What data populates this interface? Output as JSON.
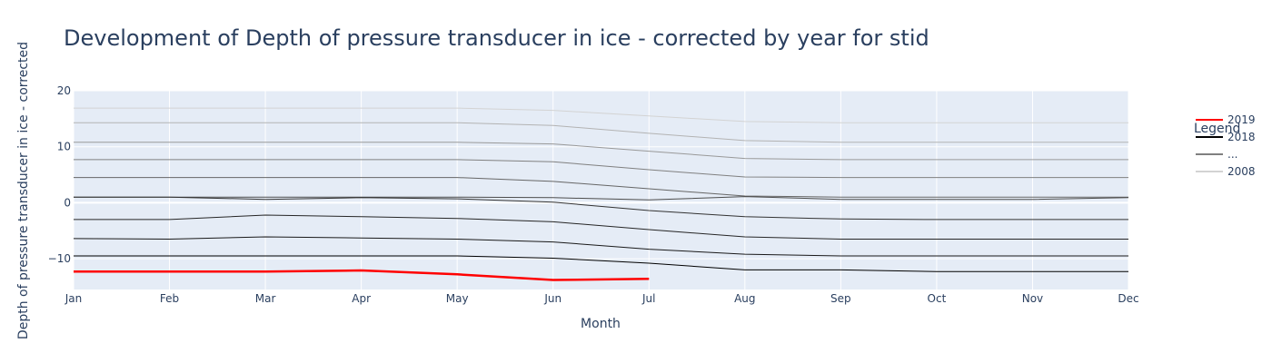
{
  "chart_data": {
    "type": "line",
    "title": "Development of Depth of pressure transducer in ice - corrected by year for stid",
    "xlabel": "Month",
    "ylabel": "Depth of pressure transducer in ice - corrected",
    "categories": [
      "Jan",
      "Feb",
      "Mar",
      "Apr",
      "May",
      "Jun",
      "Jul",
      "Aug",
      "Sep",
      "Oct",
      "Nov",
      "Dec"
    ],
    "ylim": [
      -15.5,
      20
    ],
    "yticks": [
      {
        "value": 20,
        "label": "20"
      },
      {
        "value": 10,
        "label": "10"
      },
      {
        "value": 0,
        "label": "0"
      },
      {
        "value": -10,
        "label": "−10"
      }
    ],
    "grid": true,
    "legend": {
      "title": "Legend",
      "placement": "right",
      "items": [
        {
          "label": "2019",
          "color": "#ff0000"
        },
        {
          "label": "2018",
          "color": "#000000"
        },
        {
          "label": "...",
          "color": "#808080"
        },
        {
          "label": "2008",
          "color": "#d3d3d3"
        }
      ]
    },
    "series": [
      {
        "name": "2019",
        "color": "#ff0000",
        "width": 2.5,
        "values": [
          -12.3,
          -12.3,
          -12.3,
          -12.1,
          -12.8,
          -13.8,
          -13.6,
          null,
          null,
          null,
          null,
          null
        ]
      },
      {
        "name": "2018",
        "color": "#000000",
        "width": 1,
        "values": [
          -9.5,
          -9.5,
          -9.5,
          -9.5,
          -9.5,
          -9.9,
          -10.8,
          -12.0,
          -12.0,
          -12.3,
          -12.3,
          -12.3
        ]
      },
      {
        "color": "#1a1a1a",
        "width": 1,
        "values": [
          -6.4,
          -6.5,
          -6.1,
          -6.3,
          -6.5,
          -7.0,
          -8.3,
          -9.2,
          -9.5,
          -9.5,
          -9.5,
          -9.5
        ]
      },
      {
        "color": "#262626",
        "width": 1,
        "values": [
          -3.0,
          -3.0,
          -2.2,
          -2.5,
          -2.8,
          -3.4,
          -4.8,
          -6.1,
          -6.5,
          -6.5,
          -6.5,
          -6.5
        ]
      },
      {
        "color": "#333333",
        "width": 1,
        "values": [
          1.0,
          1.0,
          0.6,
          0.9,
          0.7,
          0.1,
          -1.4,
          -2.5,
          -2.9,
          -3.0,
          -3.0,
          -3.0
        ]
      },
      {
        "color": "#4d4d4d",
        "width": 1,
        "values": [
          1.0,
          1.0,
          1.0,
          1.0,
          1.0,
          0.9,
          0.5,
          1.1,
          0.6,
          0.6,
          0.6,
          0.9
        ]
      },
      {
        "color": "#666666",
        "width": 1,
        "values": [
          4.5,
          4.5,
          4.5,
          4.5,
          4.5,
          3.8,
          2.5,
          1.2,
          1.0,
          1.0,
          1.0,
          1.0
        ]
      },
      {
        "color": "#808080",
        "width": 1,
        "values": [
          7.7,
          7.7,
          7.7,
          7.7,
          7.7,
          7.3,
          5.9,
          4.6,
          4.5,
          4.5,
          4.5,
          4.5
        ]
      },
      {
        "color": "#999999",
        "width": 1,
        "values": [
          10.8,
          10.8,
          10.8,
          10.8,
          10.8,
          10.5,
          9.2,
          7.9,
          7.7,
          7.7,
          7.7,
          7.7
        ]
      },
      {
        "color": "#b3b3b3",
        "width": 1,
        "values": [
          14.3,
          14.3,
          14.3,
          14.3,
          14.3,
          13.8,
          12.4,
          11.1,
          10.8,
          10.8,
          10.8,
          10.8
        ]
      },
      {
        "color": "#d3d3d3",
        "width": 1,
        "values": [
          16.9,
          16.9,
          16.9,
          16.9,
          16.9,
          16.5,
          15.5,
          14.5,
          14.3,
          14.3,
          14.3,
          14.3
        ]
      }
    ]
  }
}
